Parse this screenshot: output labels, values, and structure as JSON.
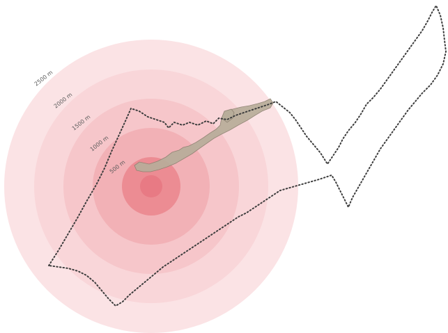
{
  "map": {
    "rings": [
      {
        "label": "500 m",
        "color": "#ec8c93"
      },
      {
        "label": "1000 m",
        "color": "#f2b1b6"
      },
      {
        "label": "1500 m",
        "color": "#f6c6ca"
      },
      {
        "label": "2000 m",
        "color": "#f9d6d9"
      },
      {
        "label": "2500 m",
        "color": "#fbe3e5"
      }
    ],
    "center_color": "#e87a84",
    "boundary_color": "#3d3d3d",
    "settlement_color": "#b8ad9a"
  }
}
